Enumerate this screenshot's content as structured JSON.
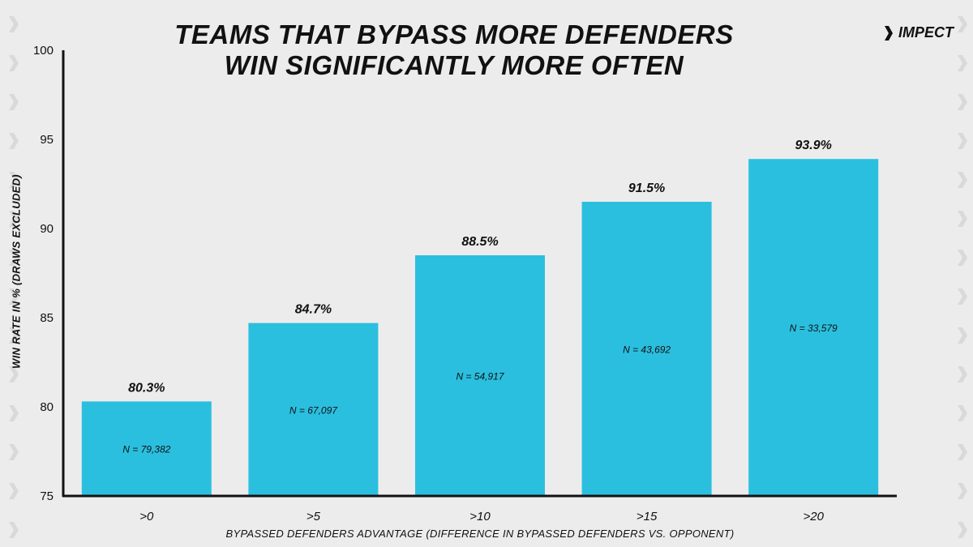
{
  "header": {
    "title_line1": "TEAMS THAT BYPASS MORE DEFENDERS",
    "title_line2": "WIN SIGNIFICANTLY MORE OFTEN",
    "logo_text": "IMPECT"
  },
  "colors": {
    "bar": "#2bbfdf",
    "axis": "#111111",
    "background": "#ececec"
  },
  "chart_data": {
    "type": "bar",
    "title": "TEAMS THAT BYPASS MORE DEFENDERS WIN SIGNIFICANTLY MORE OFTEN",
    "xlabel": "BYPASSED DEFENDERS ADVANTAGE (DIFFERENCE IN BYPASSED DEFENDERS VS. OPPONENT)",
    "ylabel": "WIN RATE IN % (DRAWS EXCLUDED)",
    "categories": [
      ">0",
      ">5",
      ">10",
      ">15",
      ">20"
    ],
    "values": [
      80.3,
      84.7,
      88.5,
      91.5,
      93.9
    ],
    "value_labels": [
      "80.3%",
      "84.7%",
      "88.5%",
      "91.5%",
      "93.9%"
    ],
    "sample_labels": [
      "N = 79,382",
      "N = 67,097",
      "N = 54,917",
      "N = 43,692",
      "N = 33,579"
    ],
    "ylim": [
      75,
      100
    ],
    "yticks": [
      75,
      80,
      85,
      90,
      95,
      100
    ],
    "grid": false,
    "legend": "none"
  }
}
